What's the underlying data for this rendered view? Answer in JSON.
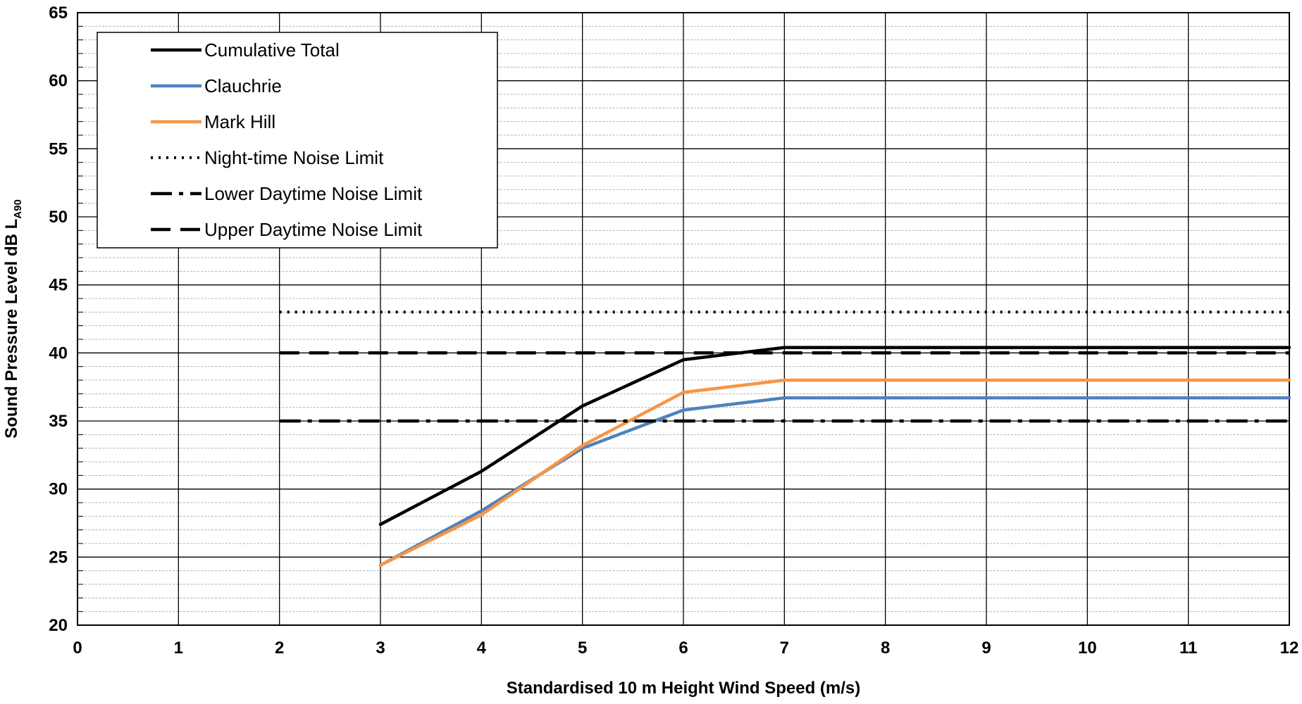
{
  "chart_data": {
    "type": "line",
    "title": "",
    "xlabel": "Standardised 10 m Height Wind Speed (m/s)",
    "ylabel": {
      "main": "Sound Pressure Level dB L",
      "sub": "A90"
    },
    "xlim": [
      0,
      12
    ],
    "ylim": [
      20,
      65
    ],
    "x_ticks": [
      0,
      1,
      2,
      3,
      4,
      5,
      6,
      7,
      8,
      9,
      10,
      11,
      12
    ],
    "y_ticks": [
      20,
      25,
      30,
      35,
      40,
      45,
      50,
      55,
      60,
      65
    ],
    "y_minor_step": 1,
    "grid": true,
    "legend_position": "top-left",
    "series": [
      {
        "name": "Cumulative Total",
        "color": "#000000",
        "style": "solid",
        "x": [
          3,
          4,
          5,
          6,
          7,
          8,
          9,
          10,
          11,
          12
        ],
        "y": [
          27.4,
          31.3,
          36.1,
          39.5,
          40.4,
          40.4,
          40.4,
          40.4,
          40.4,
          40.4
        ]
      },
      {
        "name": "Clauchrie",
        "color": "#4F81BD",
        "style": "solid",
        "x": [
          3,
          4,
          5,
          6,
          7,
          8,
          9,
          10,
          11,
          12
        ],
        "y": [
          24.4,
          28.4,
          33.0,
          35.8,
          36.7,
          36.7,
          36.7,
          36.7,
          36.7,
          36.7
        ]
      },
      {
        "name": "Mark Hill",
        "color": "#F79646",
        "style": "solid",
        "x": [
          3,
          4,
          5,
          6,
          7,
          8,
          9,
          10,
          11,
          12
        ],
        "y": [
          24.4,
          28.1,
          33.2,
          37.1,
          38.0,
          38.0,
          38.0,
          38.0,
          38.0,
          38.0
        ]
      },
      {
        "name": "Night-time Noise Limit",
        "color": "#000000",
        "style": "dotted",
        "x": [
          2,
          12
        ],
        "y": [
          43,
          43
        ]
      },
      {
        "name": "Lower Daytime Noise Limit",
        "color": "#000000",
        "style": "long-dash-dot",
        "x": [
          2,
          12
        ],
        "y": [
          35,
          35
        ]
      },
      {
        "name": "Upper Daytime Noise Limit",
        "color": "#000000",
        "style": "dashed",
        "x": [
          2,
          12
        ],
        "y": [
          40,
          40
        ]
      }
    ]
  }
}
